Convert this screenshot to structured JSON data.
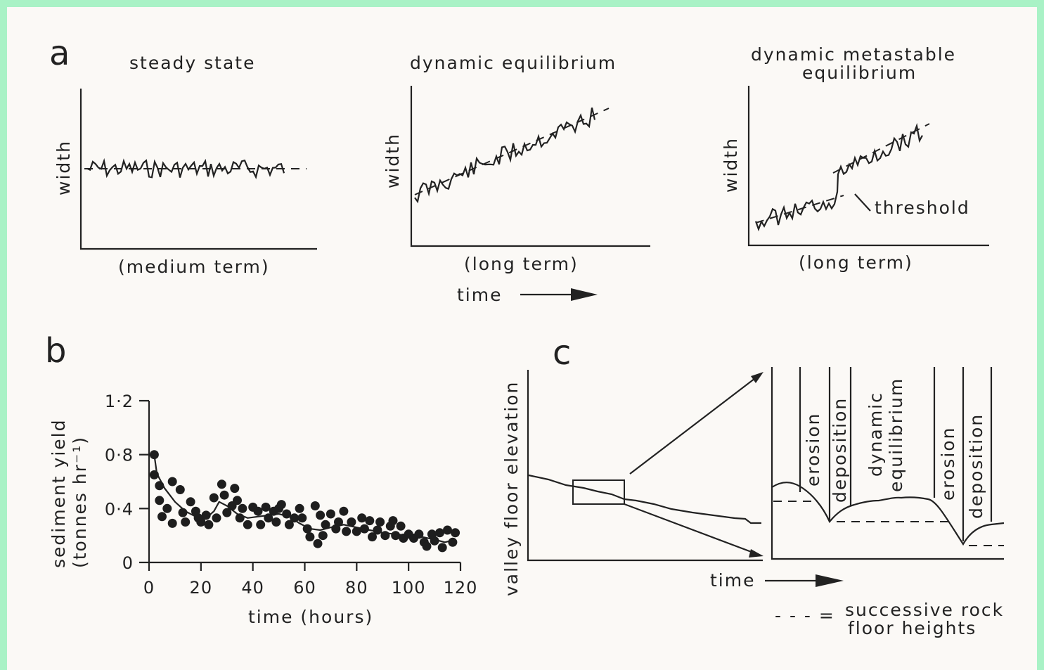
{
  "panel_a": {
    "letter": "a",
    "plots": [
      {
        "title": "steady state",
        "ylabel": "width",
        "xlabel": "(medium term)"
      },
      {
        "title": "dynamic equilibrium",
        "ylabel": "width",
        "xlabel": "(long term)"
      },
      {
        "title_line1": "dynamic metastable",
        "title_line2": "equilibrium",
        "ylabel": "width",
        "xlabel": "(long term)",
        "annotation": "threshold"
      }
    ],
    "time_label": "time"
  },
  "panel_b": {
    "letter": "b",
    "ylabel_line1": "sediment yield",
    "ylabel_line2": "(tonnes hr⁻¹)",
    "xlabel": "time (hours)",
    "y_ticks": [
      "0",
      "0·4",
      "0·8",
      "1·2"
    ],
    "x_ticks": [
      "0",
      "20",
      "40",
      "60",
      "80",
      "100",
      "120"
    ]
  },
  "panel_c": {
    "letter": "c",
    "ylabel": "valley floor elevation",
    "xlabel": "time",
    "zones": [
      "erosion",
      "deposition",
      "dynamic",
      "equilibrium",
      "erosion",
      "deposition"
    ],
    "legend_symbol": "- - - =",
    "legend_line1": "successive rock",
    "legend_line2": "floor heights"
  },
  "chart_data": {
    "type": "scatter",
    "xlabel": "time (hours)",
    "ylabel": "sediment yield (tonnes hr⁻¹)",
    "xlim": [
      0,
      120
    ],
    "ylim": [
      0,
      1.2
    ],
    "points": [
      [
        2,
        0.8
      ],
      [
        2,
        0.65
      ],
      [
        4,
        0.57
      ],
      [
        4,
        0.46
      ],
      [
        5,
        0.34
      ],
      [
        7,
        0.4
      ],
      [
        9,
        0.6
      ],
      [
        9,
        0.29
      ],
      [
        12,
        0.54
      ],
      [
        13,
        0.37
      ],
      [
        14,
        0.3
      ],
      [
        16,
        0.45
      ],
      [
        18,
        0.38
      ],
      [
        19,
        0.33
      ],
      [
        20,
        0.3
      ],
      [
        22,
        0.35
      ],
      [
        23,
        0.28
      ],
      [
        25,
        0.48
      ],
      [
        26,
        0.33
      ],
      [
        28,
        0.58
      ],
      [
        29,
        0.5
      ],
      [
        30,
        0.37
      ],
      [
        32,
        0.42
      ],
      [
        33,
        0.55
      ],
      [
        34,
        0.46
      ],
      [
        35,
        0.33
      ],
      [
        36,
        0.4
      ],
      [
        38,
        0.28
      ],
      [
        40,
        0.41
      ],
      [
        42,
        0.38
      ],
      [
        43,
        0.28
      ],
      [
        45,
        0.41
      ],
      [
        46,
        0.33
      ],
      [
        48,
        0.38
      ],
      [
        49,
        0.3
      ],
      [
        50,
        0.4
      ],
      [
        51,
        0.43
      ],
      [
        53,
        0.36
      ],
      [
        54,
        0.28
      ],
      [
        56,
        0.33
      ],
      [
        58,
        0.4
      ],
      [
        59,
        0.33
      ],
      [
        61,
        0.25
      ],
      [
        62,
        0.19
      ],
      [
        64,
        0.42
      ],
      [
        65,
        0.14
      ],
      [
        66,
        0.35
      ],
      [
        67,
        0.2
      ],
      [
        68,
        0.28
      ],
      [
        70,
        0.36
      ],
      [
        72,
        0.25
      ],
      [
        73,
        0.3
      ],
      [
        75,
        0.38
      ],
      [
        76,
        0.23
      ],
      [
        78,
        0.3
      ],
      [
        80,
        0.23
      ],
      [
        82,
        0.33
      ],
      [
        83,
        0.25
      ],
      [
        85,
        0.31
      ],
      [
        86,
        0.19
      ],
      [
        88,
        0.24
      ],
      [
        89,
        0.3
      ],
      [
        91,
        0.2
      ],
      [
        93,
        0.27
      ],
      [
        94,
        0.31
      ],
      [
        95,
        0.2
      ],
      [
        97,
        0.27
      ],
      [
        98,
        0.18
      ],
      [
        100,
        0.21
      ],
      [
        102,
        0.18
      ],
      [
        104,
        0.21
      ],
      [
        106,
        0.15
      ],
      [
        107,
        0.12
      ],
      [
        109,
        0.21
      ],
      [
        110,
        0.16
      ],
      [
        112,
        0.22
      ],
      [
        113,
        0.11
      ],
      [
        115,
        0.24
      ],
      [
        117,
        0.15
      ],
      [
        118,
        0.22
      ]
    ],
    "smooth_curve": [
      [
        3,
        0.66
      ],
      [
        6,
        0.55
      ],
      [
        10,
        0.45
      ],
      [
        14,
        0.38
      ],
      [
        18,
        0.34
      ],
      [
        22,
        0.33
      ],
      [
        25,
        0.38
      ],
      [
        27,
        0.45
      ],
      [
        30,
        0.42
      ],
      [
        34,
        0.36
      ],
      [
        38,
        0.33
      ],
      [
        42,
        0.34
      ],
      [
        46,
        0.35
      ],
      [
        50,
        0.36
      ],
      [
        54,
        0.34
      ],
      [
        58,
        0.29
      ],
      [
        62,
        0.25
      ],
      [
        66,
        0.24
      ],
      [
        70,
        0.26
      ],
      [
        75,
        0.28
      ],
      [
        80,
        0.26
      ],
      [
        85,
        0.24
      ],
      [
        90,
        0.22
      ],
      [
        95,
        0.21
      ],
      [
        100,
        0.2
      ],
      [
        105,
        0.19
      ],
      [
        110,
        0.17
      ],
      [
        114,
        0.15
      ],
      [
        118,
        0.17
      ]
    ]
  }
}
